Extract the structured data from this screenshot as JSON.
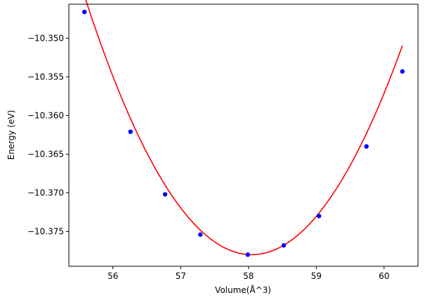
{
  "chart_data": {
    "type": "scatter",
    "title": "",
    "xlabel": "Volume(Å^3)",
    "ylabel": "Energy (eV)",
    "xlim": [
      55.35,
      60.5
    ],
    "ylim": [
      -10.3795,
      -10.3456
    ],
    "x_ticks": [
      56,
      57,
      58,
      59,
      60
    ],
    "x_tick_labels": [
      "56",
      "57",
      "58",
      "59",
      "60"
    ],
    "y_ticks": [
      -10.35,
      -10.355,
      -10.36,
      -10.365,
      -10.37,
      -10.375
    ],
    "y_tick_labels": [
      "−10.350",
      "−10.355",
      "−10.360",
      "−10.365",
      "−10.370",
      "−10.375"
    ],
    "grid": false,
    "series": [
      {
        "kind": "points",
        "color": "#0000ff",
        "x": [
          55.58,
          56.26,
          56.77,
          57.29,
          57.99,
          58.52,
          59.04,
          59.74,
          60.27
        ],
        "y": [
          -10.3466,
          -10.3621,
          -10.3702,
          -10.3754,
          -10.378,
          -10.3768,
          -10.373,
          -10.364,
          -10.3543
        ]
      },
      {
        "kind": "fit-curve",
        "color": "#ff0000",
        "vertex_x": 58.05,
        "vertex_y": -10.378,
        "curvature": 0.00549,
        "x_range": [
          55.58,
          60.27
        ]
      }
    ]
  }
}
